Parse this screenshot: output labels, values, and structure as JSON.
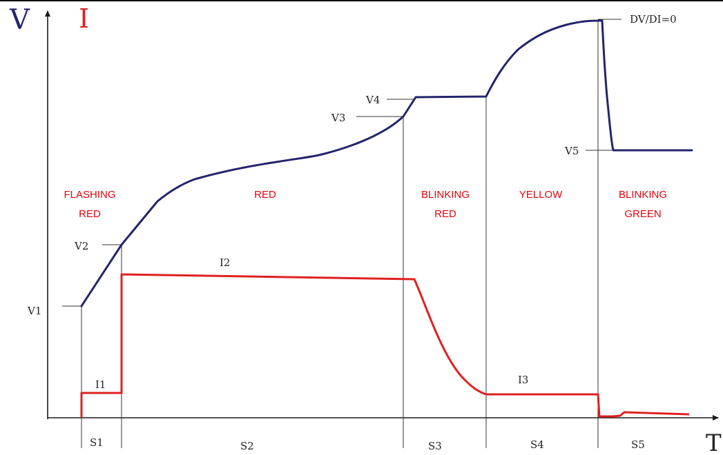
{
  "axes": {
    "v_label": "V",
    "i_label": "I",
    "t_label": "T"
  },
  "colors": {
    "voltage_curve": "#23236b",
    "current_curve": "#e02020",
    "phase_text": "#e8000b"
  },
  "voltage_markers": [
    "V1",
    "V2",
    "V3",
    "V4",
    "V5"
  ],
  "dvdi_label": "DV/DI=0",
  "current_markers": [
    "I1",
    "I2",
    "I3"
  ],
  "phases": [
    {
      "stage": "S1",
      "indicator_line1": "FLASHING",
      "indicator_line2": "RED"
    },
    {
      "stage": "S2",
      "indicator_line1": "RED",
      "indicator_line2": ""
    },
    {
      "stage": "S3",
      "indicator_line1": "BLINKING",
      "indicator_line2": "RED"
    },
    {
      "stage": "S4",
      "indicator_line1": "YELLOW",
      "indicator_line2": ""
    },
    {
      "stage": "S5",
      "indicator_line1": "BLINKING",
      "indicator_line2": "GREEN"
    }
  ]
}
